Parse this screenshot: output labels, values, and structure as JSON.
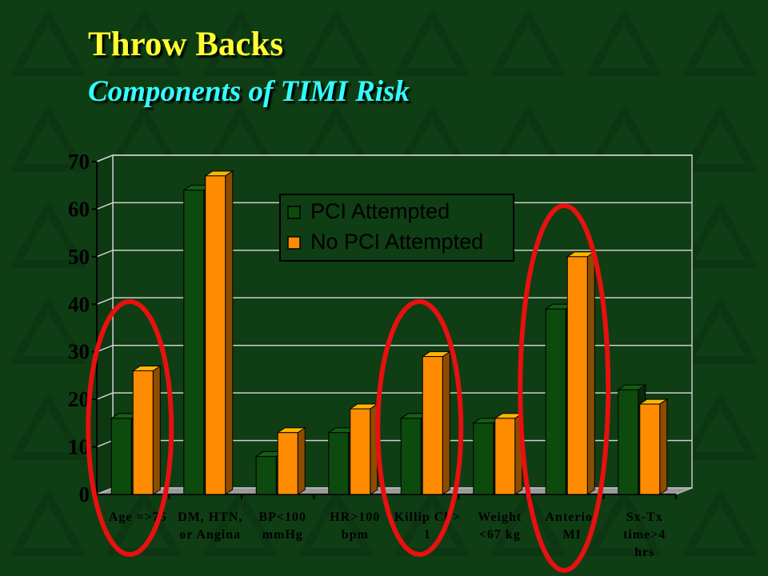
{
  "slide": {
    "title": "Throw Backs",
    "subtitle": "Components of TIMI Risk"
  },
  "colors": {
    "background": "#0f3d14",
    "title": "#ffff33",
    "subtitle": "#33ffff",
    "series_pci": "#0d4a0d",
    "series_no_pci": "#ff8c00",
    "highlight_circle": "#e81010"
  },
  "chart_data": {
    "type": "bar",
    "title": "",
    "xlabel": "",
    "ylabel": "",
    "ylim": [
      0,
      70
    ],
    "yticks": [
      0,
      10,
      20,
      30,
      40,
      50,
      60,
      70
    ],
    "grid": true,
    "legend_position": "top-right",
    "categories": [
      [
        "Age =>75"
      ],
      [
        "DM, HTN,",
        "or Angina"
      ],
      [
        "BP<100",
        "mmHg"
      ],
      [
        "HR>100",
        "bpm"
      ],
      [
        "Killip Cl >",
        "1"
      ],
      [
        "Weight",
        "<67 kg"
      ],
      [
        "Anterior",
        "MI"
      ],
      [
        "Sx-Tx",
        "time>4",
        "hrs"
      ]
    ],
    "series": [
      {
        "name": "PCI Attempted",
        "values": [
          16,
          64,
          8,
          13,
          16,
          15,
          39,
          22
        ]
      },
      {
        "name": "No PCI Attempted",
        "values": [
          26,
          67,
          13,
          18,
          29,
          16,
          50,
          19
        ]
      }
    ],
    "highlighted_categories": [
      0,
      4,
      6
    ]
  }
}
